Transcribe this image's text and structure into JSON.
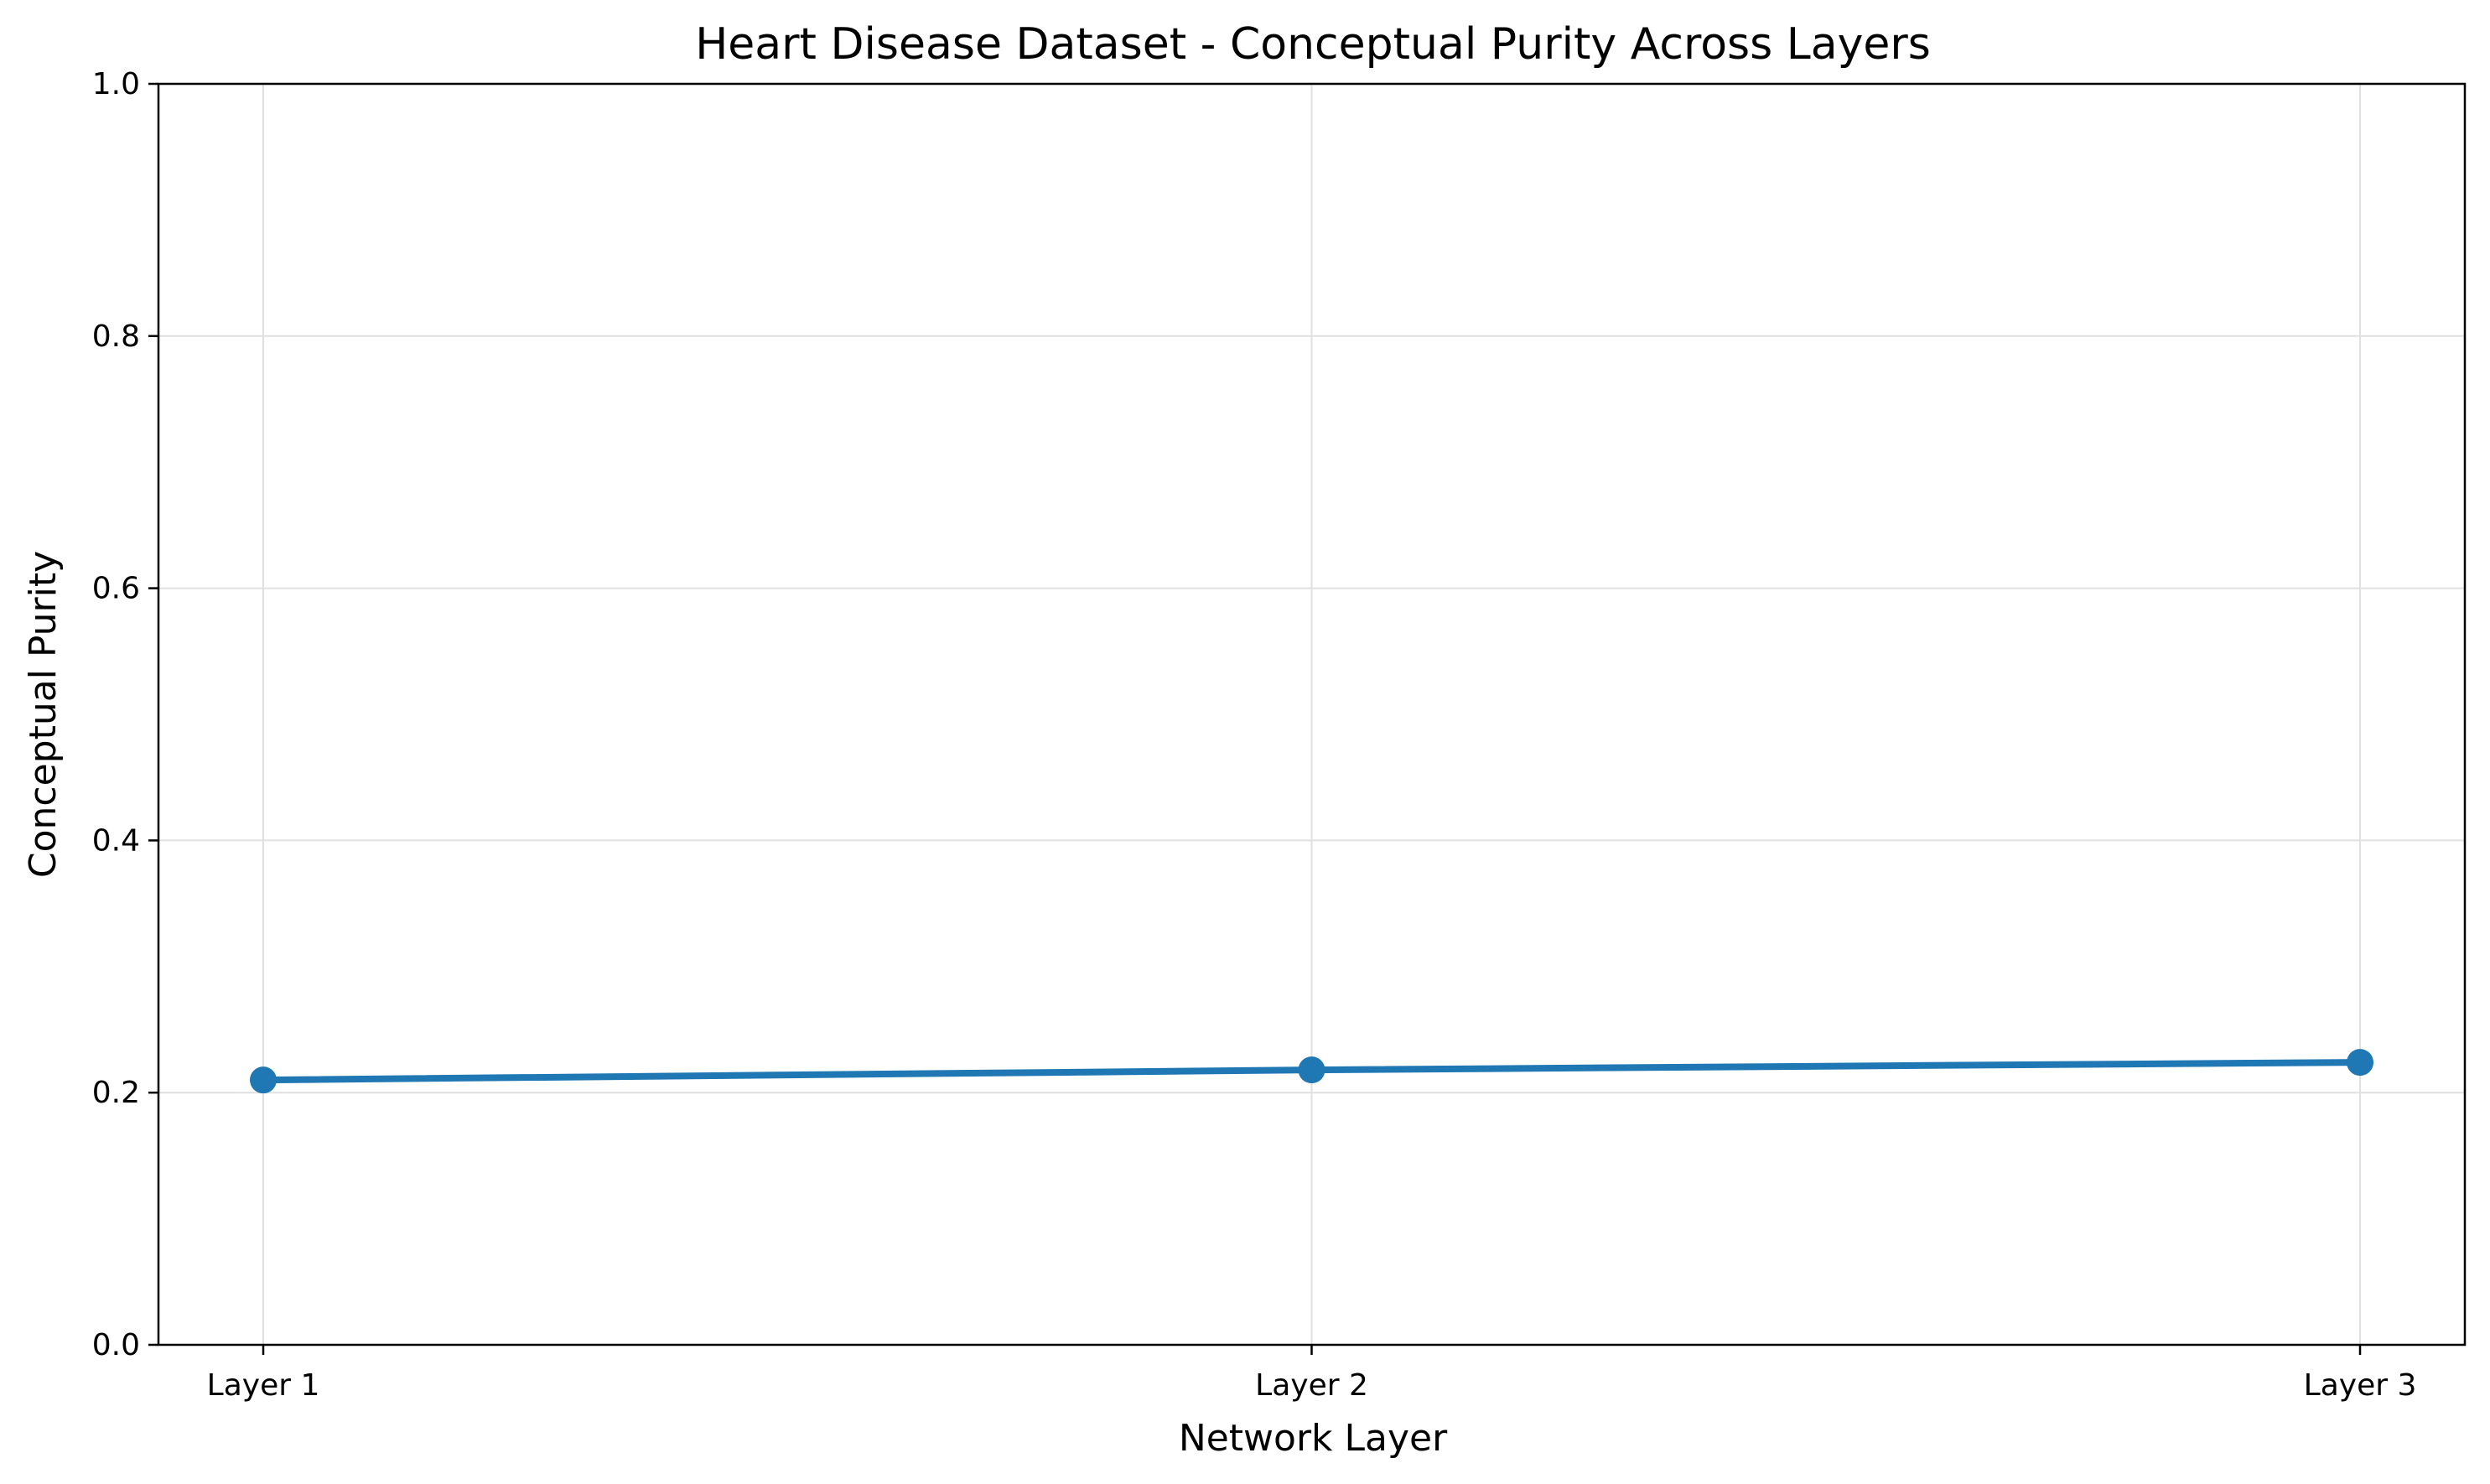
{
  "chart_data": {
    "type": "line",
    "title": "Heart Disease Dataset - Conceptual Purity Across Layers",
    "xlabel": "Network Layer",
    "ylabel": "Conceptual Purity",
    "categories": [
      "Layer 1",
      "Layer 2",
      "Layer 3"
    ],
    "series": [
      {
        "values": [
          0.21,
          0.218,
          0.224
        ]
      }
    ],
    "ylim": [
      0,
      1
    ],
    "yticks": [
      "0.0",
      "0.2",
      "0.4",
      "0.6",
      "0.8",
      "1.0"
    ],
    "grid": true,
    "colors": {
      "line": "#1f77b4",
      "grid": "#e0e0e0",
      "axis": "#000000"
    }
  }
}
